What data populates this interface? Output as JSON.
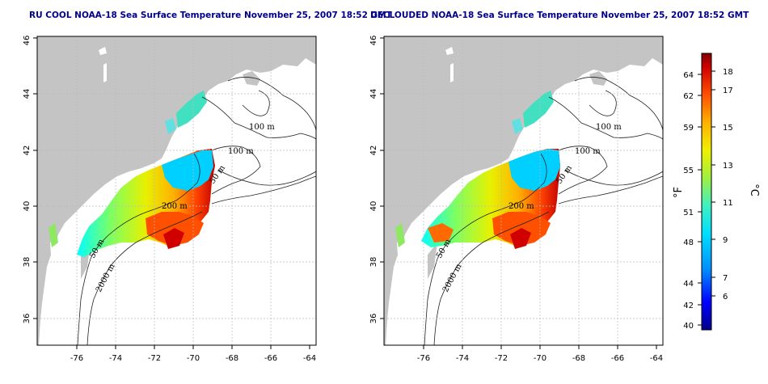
{
  "panels": [
    {
      "id": "left",
      "title": "RU COOL NOAA-18 Sea Surface Temperature November 25, 2007 18:52 GMT",
      "x_ticks": [
        "-76",
        "-74",
        "-72",
        "-70",
        "-68",
        "-66",
        "-64"
      ],
      "y_ticks": [
        "36",
        "38",
        "40",
        "42",
        "44",
        "46"
      ],
      "contour_labels": [
        "100 m",
        "100 m",
        "50 m",
        "200 m",
        "50 m",
        "2000 m"
      ]
    },
    {
      "id": "right",
      "title": "DECLOUDED NOAA-18 Sea Surface Temperature November 25, 2007 18:52 GMT",
      "x_ticks": [
        "-76",
        "-74",
        "-72",
        "-70",
        "-68",
        "-66",
        "-64"
      ],
      "y_ticks": [
        "36",
        "38",
        "40",
        "42",
        "44",
        "46"
      ],
      "contour_labels": [
        "100 m",
        "100 m",
        "50 m",
        "200 m",
        "50 m",
        "2000 m"
      ]
    }
  ],
  "colorbar": {
    "fahrenheit_label": "°F",
    "celsius_label": "°C",
    "fahrenheit_ticks": [
      "64",
      "62",
      "59",
      "55",
      "51",
      "48",
      "44",
      "42",
      "40"
    ],
    "celsius_ticks": [
      "18",
      "17",
      "15",
      "13",
      "11",
      "9",
      "7",
      "6"
    ],
    "gradient": [
      "#00008b",
      "#0000ff",
      "#0090ff",
      "#00e0ff",
      "#40f0c0",
      "#a0f040",
      "#f0f000",
      "#ffb000",
      "#ff5000",
      "#d00000",
      "#800000"
    ]
  },
  "colors": {
    "land": "#c4c4c4",
    "title": "#00008b",
    "grid": "#bbbbbb"
  }
}
